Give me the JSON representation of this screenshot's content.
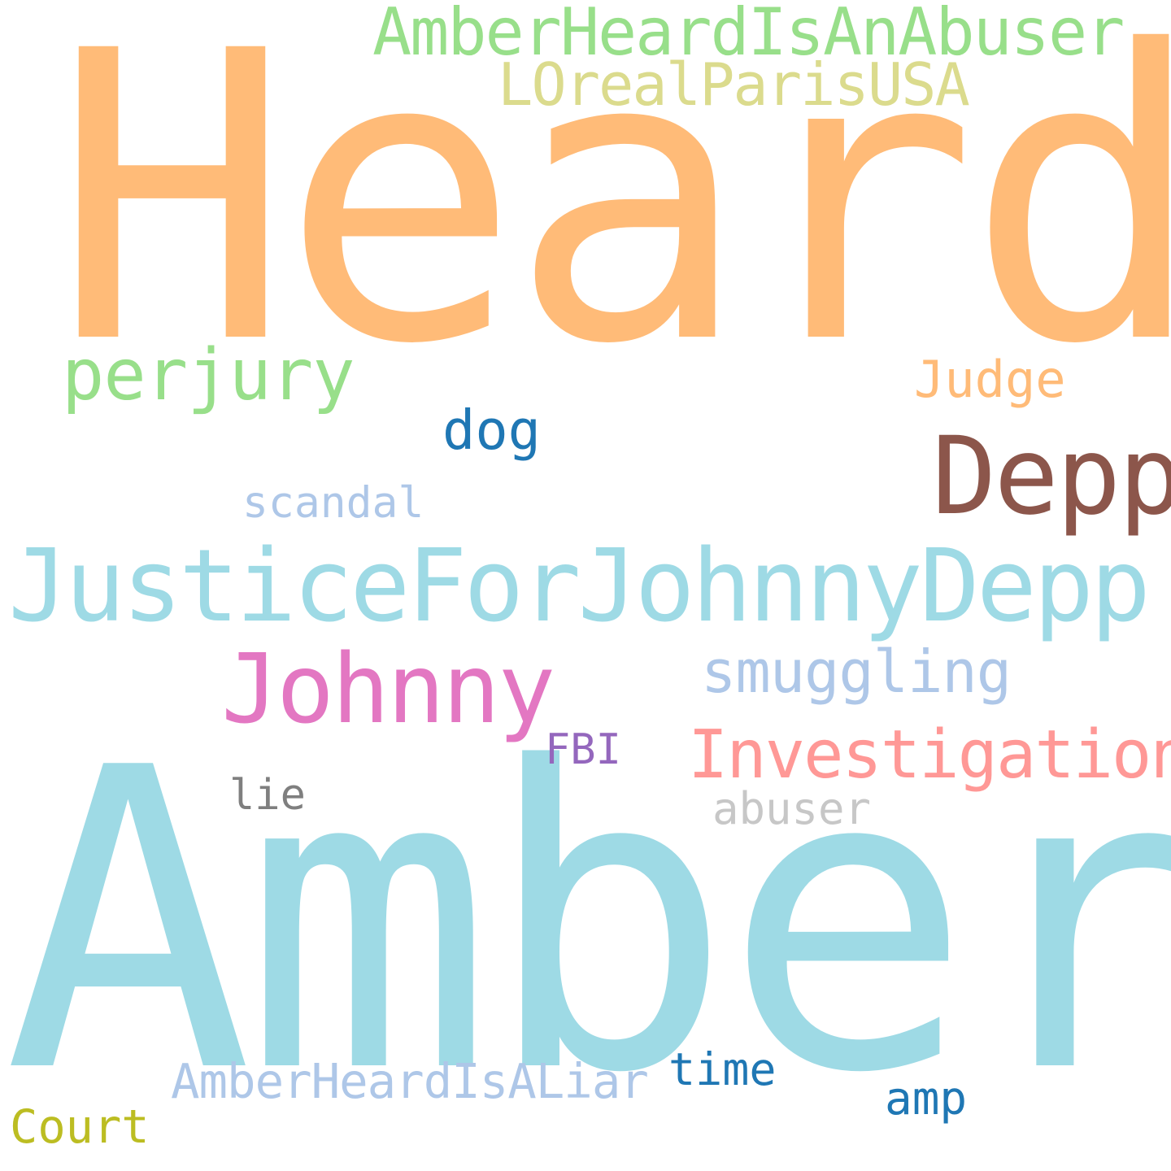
{
  "word_cloud": {
    "words": [
      {
        "id": "heard",
        "text": "Heard",
        "color": "#ffbb78"
      },
      {
        "id": "amber",
        "text": "Amber",
        "color": "#9edae5"
      },
      {
        "id": "justice",
        "text": "JusticeForJohnnyDepp",
        "color": "#9edae5"
      },
      {
        "id": "ahiaa",
        "text": "AmberHeardIsAnAbuser",
        "color": "#98df8a"
      },
      {
        "id": "loreal",
        "text": "LOrealParisUSA",
        "color": "#dbdb8d"
      },
      {
        "id": "perjury",
        "text": "perjury",
        "color": "#98df8a"
      },
      {
        "id": "judge",
        "text": "Judge",
        "color": "#ffbb78"
      },
      {
        "id": "dog",
        "text": "dog",
        "color": "#1f77b4"
      },
      {
        "id": "depp",
        "text": "Depp",
        "color": "#8c564b"
      },
      {
        "id": "scandal",
        "text": "scandal",
        "color": "#aec7e8"
      },
      {
        "id": "johnny",
        "text": "Johnny",
        "color": "#e377c2"
      },
      {
        "id": "smuggling",
        "text": "smuggling",
        "color": "#aec7e8"
      },
      {
        "id": "fbi",
        "text": "FBI",
        "color": "#9467bd"
      },
      {
        "id": "investigation",
        "text": "Investigation",
        "color": "#ff9896"
      },
      {
        "id": "lie",
        "text": "lie",
        "color": "#7f7f7f"
      },
      {
        "id": "abuser",
        "text": "abuser",
        "color": "#c7c7c7"
      },
      {
        "id": "ahial",
        "text": "AmberHeardIsALiar",
        "color": "#aec7e8"
      },
      {
        "id": "time",
        "text": "time",
        "color": "#1f77b4"
      },
      {
        "id": "amp",
        "text": "amp",
        "color": "#1f77b4"
      },
      {
        "id": "court",
        "text": "Court",
        "color": "#bcbd22"
      }
    ]
  }
}
